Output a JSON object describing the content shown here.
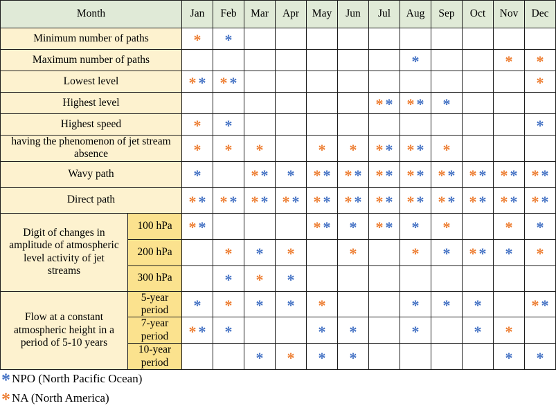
{
  "table": {
    "corner_label": "Month",
    "months": [
      "Jan",
      "Feb",
      "Mar",
      "Apr",
      "May",
      "Jun",
      "Jul",
      "Aug",
      "Sep",
      "Oct",
      "Nov",
      "Dec"
    ],
    "rows": [
      {
        "label": "Minimum number of paths",
        "cells": [
          [
            "NA"
          ],
          [
            "NPO"
          ],
          [],
          [],
          [],
          [],
          [],
          [],
          [],
          [],
          [],
          []
        ]
      },
      {
        "label": "Maximum number of paths",
        "cells": [
          [],
          [],
          [],
          [],
          [],
          [],
          [],
          [
            "NPO"
          ],
          [],
          [],
          [
            "NA"
          ],
          [
            "NA"
          ]
        ]
      },
      {
        "label": "Lowest level",
        "cells": [
          [
            "NA",
            "NPO"
          ],
          [
            "NA",
            "NPO"
          ],
          [],
          [],
          [],
          [],
          [],
          [],
          [],
          [],
          [],
          [
            "NA"
          ]
        ]
      },
      {
        "label": "Highest level",
        "cells": [
          [],
          [],
          [],
          [],
          [],
          [],
          [
            "NA",
            "NPO"
          ],
          [
            "NA",
            "NPO"
          ],
          [
            "NPO"
          ],
          [],
          [],
          []
        ]
      },
      {
        "label": "Highest speed",
        "cells": [
          [
            "NA"
          ],
          [
            "NPO"
          ],
          [],
          [],
          [],
          [],
          [],
          [],
          [],
          [],
          [],
          [
            "NPO"
          ]
        ]
      },
      {
        "label": "having the phenomenon of jet stream absence",
        "cells": [
          [
            "NA"
          ],
          [
            "NA"
          ],
          [
            "NA"
          ],
          [],
          [
            "NA"
          ],
          [
            "NA"
          ],
          [
            "NA",
            "NPO"
          ],
          [
            "NA",
            "NPO"
          ],
          [
            "NA"
          ],
          [],
          [],
          []
        ]
      },
      {
        "label": "Wavy path",
        "cells": [
          [
            "NPO"
          ],
          [],
          [
            "NA",
            "NPO"
          ],
          [
            "NPO"
          ],
          [
            "NA",
            "NPO"
          ],
          [
            "NA",
            "NPO"
          ],
          [
            "NA",
            "NPO"
          ],
          [
            "NA",
            "NPO"
          ],
          [
            "NA",
            "NPO"
          ],
          [
            "NA",
            "NPO"
          ],
          [
            "NA",
            "NPO"
          ],
          [
            "NA",
            "NPO"
          ]
        ]
      },
      {
        "label": "Direct path",
        "cells": [
          [
            "NA",
            "NPO"
          ],
          [
            "NA",
            "NPO"
          ],
          [
            "NA",
            "NPO"
          ],
          [
            "NA",
            "NPO"
          ],
          [
            "NA",
            "NPO"
          ],
          [
            "NA",
            "NPO"
          ],
          [
            "NA",
            "NPO"
          ],
          [
            "NA",
            "NPO"
          ],
          [
            "NA",
            "NPO"
          ],
          [
            "NA",
            "NPO"
          ],
          [
            "NA",
            "NPO"
          ],
          [
            "NA",
            "NPO"
          ]
        ]
      }
    ],
    "groups": [
      {
        "label": "Digit of changes in amplitude of atmospheric level activity of jet streams",
        "subrows": [
          {
            "label": "100 hPa",
            "cells": [
              [
                "NA",
                "NPO"
              ],
              [],
              [],
              [],
              [
                "NA",
                "NPO"
              ],
              [
                "NPO"
              ],
              [
                "NA",
                "NPO"
              ],
              [
                "NPO"
              ],
              [
                "NA"
              ],
              [],
              [
                "NA"
              ],
              [
                "NPO"
              ]
            ]
          },
          {
            "label": "200 hPa",
            "cells": [
              [],
              [
                "NA"
              ],
              [
                "NPO"
              ],
              [
                "NA"
              ],
              [],
              [
                "NA"
              ],
              [],
              [
                "NA"
              ],
              [
                "NPO"
              ],
              [
                "NA",
                "NPO"
              ],
              [
                "NPO"
              ],
              [
                "NA"
              ]
            ]
          },
          {
            "label": "300 hPa",
            "cells": [
              [],
              [
                "NPO"
              ],
              [
                "NA"
              ],
              [
                "NPO"
              ],
              [],
              [],
              [],
              [],
              [],
              [],
              [],
              []
            ]
          }
        ]
      },
      {
        "label": "Flow at a constant atmospheric height in a period of 5-10 years",
        "subrows": [
          {
            "label": "5-year period",
            "cells": [
              [
                "NPO"
              ],
              [
                "NA"
              ],
              [
                "NPO"
              ],
              [
                "NPO"
              ],
              [
                "NA"
              ],
              [],
              [],
              [
                "NPO"
              ],
              [
                "NPO"
              ],
              [
                "NPO"
              ],
              [],
              [
                "NA",
                "NPO"
              ]
            ]
          },
          {
            "label": "7-year period",
            "cells": [
              [
                "NA",
                "NPO"
              ],
              [
                "NPO"
              ],
              [],
              [],
              [
                "NPO"
              ],
              [
                "NPO"
              ],
              [],
              [
                "NPO"
              ],
              [],
              [
                "NPO"
              ],
              [
                "NA"
              ],
              []
            ]
          },
          {
            "label": "10-year period",
            "cells": [
              [],
              [],
              [
                "NPO"
              ],
              [
                "NA"
              ],
              [
                "NPO"
              ],
              [
                "NPO"
              ],
              [],
              [],
              [],
              [],
              [
                "NPO"
              ],
              [
                "NPO"
              ]
            ]
          }
        ]
      }
    ]
  },
  "markers": {
    "NPO": {
      "glyph": "*",
      "color": "#4472C4",
      "meaning": "NPO (North Pacific Ocean)"
    },
    "NA": {
      "glyph": "*",
      "color": "#ED7D31",
      "meaning": "NA (North America)"
    }
  },
  "legend": [
    {
      "marker": "NPO",
      "text": "NPO (North Pacific Ocean)"
    },
    {
      "marker": "NA",
      "text": "NA (North America)"
    }
  ],
  "colors": {
    "header_bg": "#e0ead7",
    "label_bg": "#fdf2cf",
    "sublabel_bg": "#fbe28e",
    "npo_blue": "#4472C4",
    "na_orange": "#ED7D31",
    "border": "#1c1c1c"
  }
}
